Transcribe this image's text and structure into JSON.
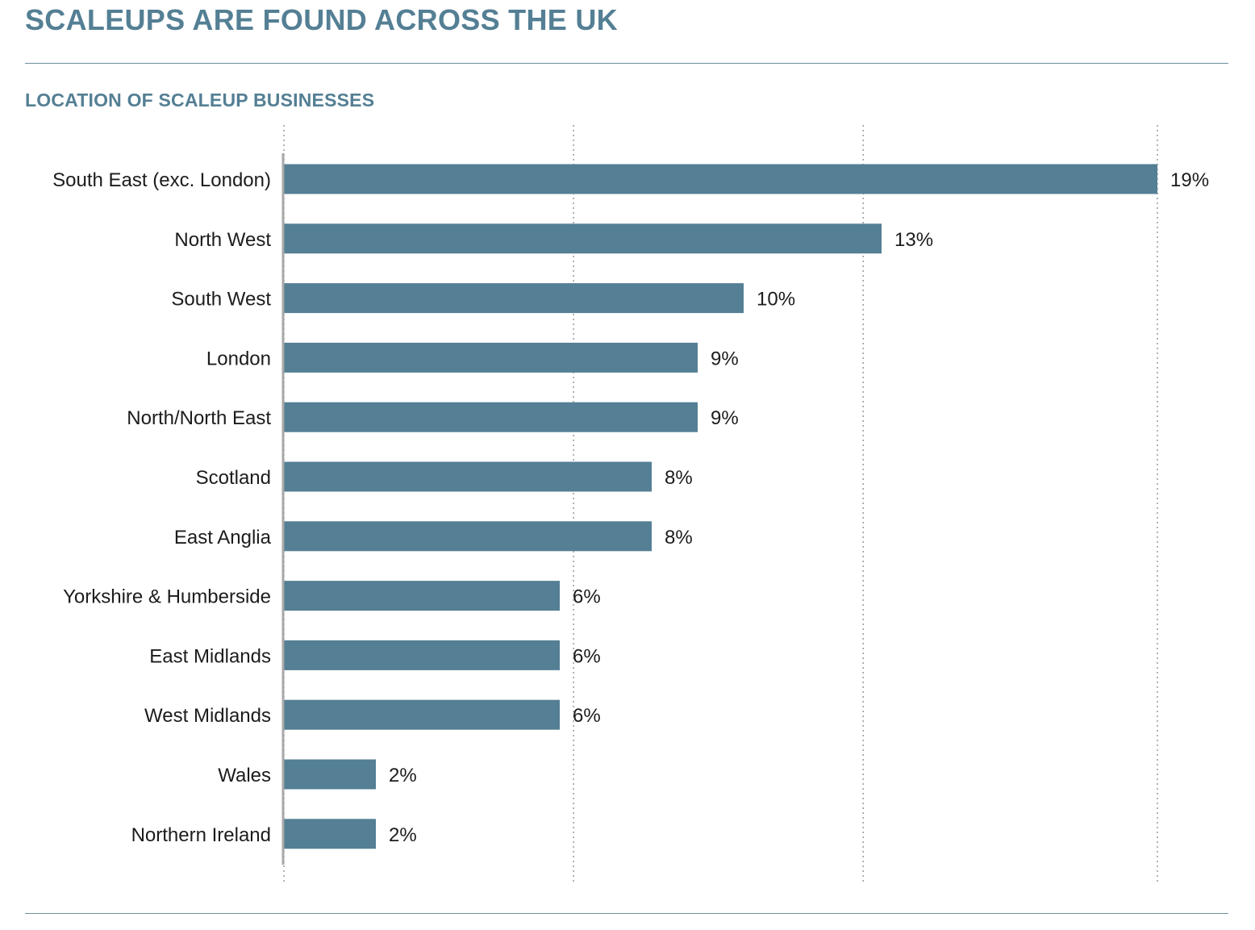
{
  "header": {
    "title": "SCALEUPS ARE FOUND ACROSS THE UK"
  },
  "chart_data": {
    "type": "bar",
    "orientation": "horizontal",
    "title": "LOCATION OF SCALEUP BUSINESSES",
    "categories": [
      "South East (exc. London)",
      "North West",
      "South West",
      "London",
      "North/North East",
      "Scotland",
      "East Anglia",
      "Yorkshire & Humberside",
      "East Midlands",
      "West Midlands",
      "Wales",
      "Northern Ireland"
    ],
    "values": [
      19,
      13,
      10,
      9,
      9,
      8,
      8,
      6,
      6,
      6,
      2,
      2
    ],
    "value_labels": [
      "19%",
      "13%",
      "10%",
      "9%",
      "9%",
      "8%",
      "8%",
      "6%",
      "6%",
      "6%",
      "2%",
      "2%"
    ],
    "unit": "%",
    "xlim": [
      0,
      19
    ],
    "gridlines": [
      0,
      6.3,
      12.6,
      19
    ],
    "grid": "dotted vertical",
    "bar_color": "#547f94"
  }
}
